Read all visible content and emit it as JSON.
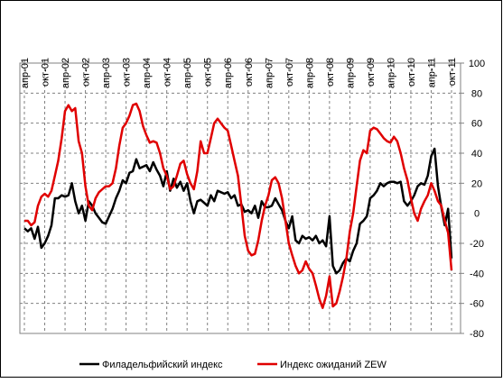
{
  "chart_data": {
    "type": "line",
    "categories": [
      "апр-01",
      null,
      null,
      null,
      null,
      null,
      "окт-01",
      null,
      null,
      null,
      null,
      null,
      "апр-02",
      null,
      null,
      null,
      null,
      null,
      "окт-02",
      null,
      null,
      null,
      null,
      null,
      "апр-03",
      null,
      null,
      null,
      null,
      null,
      "окт-03",
      null,
      null,
      null,
      null,
      null,
      "апр-04",
      null,
      null,
      null,
      null,
      null,
      "окт-04",
      null,
      null,
      null,
      null,
      null,
      "апр-05",
      null,
      null,
      null,
      null,
      null,
      "окт-05",
      null,
      null,
      null,
      null,
      null,
      "апр-06",
      null,
      null,
      null,
      null,
      null,
      "окт-06",
      null,
      null,
      null,
      null,
      null,
      "апр-07",
      null,
      null,
      null,
      null,
      null,
      "окт-07",
      null,
      null,
      null,
      null,
      null,
      "апр-08",
      null,
      null,
      null,
      null,
      null,
      "окт-08",
      null,
      null,
      null,
      null,
      null,
      "апр-09",
      null,
      null,
      null,
      null,
      null,
      "окт-09",
      null,
      null,
      null,
      null,
      null,
      "апр-10",
      null,
      null,
      null,
      null,
      null,
      "окт-10",
      null,
      null,
      null,
      null,
      null,
      "апр-11",
      null,
      null,
      null,
      null,
      null,
      "окт-11"
    ],
    "series": [
      {
        "name": "Филадельфийский индекс",
        "color": "#000000",
        "values": [
          -10,
          -12,
          -10,
          -17,
          -9,
          -23,
          -20,
          -15,
          -8,
          10,
          10,
          12,
          11,
          12,
          20,
          8,
          0,
          5,
          -5,
          8,
          5,
          0,
          -3,
          -6,
          -7,
          -2,
          3,
          10,
          15,
          22,
          20,
          27,
          28,
          36,
          30,
          31,
          32,
          28,
          34,
          29,
          25,
          18,
          28,
          15,
          23,
          17,
          21,
          15,
          20,
          8,
          0,
          8,
          9,
          7,
          5,
          12,
          8,
          15,
          14,
          13,
          14,
          10,
          12,
          5,
          6,
          1,
          2,
          0,
          5,
          -3,
          8,
          4,
          4,
          5,
          10,
          6,
          2,
          -5,
          -10,
          -2,
          -18,
          -20,
          -15,
          -17,
          -16,
          -18,
          -15,
          -20,
          -18,
          -22,
          -2,
          -35,
          -40,
          -38,
          -33,
          -30,
          -32,
          -25,
          -20,
          -7,
          -5,
          -2,
          10,
          12,
          15,
          20,
          18,
          20,
          21,
          21,
          20,
          21,
          8,
          5,
          8,
          12,
          18,
          20,
          19,
          25,
          38,
          43,
          18,
          4,
          -8,
          3,
          -30
        ]
      },
      {
        "name": "Индекс ожиданий ZEW",
        "color": "#e00000",
        "values": [
          -5,
          -5,
          -8,
          -6,
          5,
          11,
          13,
          11,
          15,
          25,
          35,
          50,
          68,
          72,
          68,
          70,
          48,
          40,
          18,
          5,
          2,
          10,
          14,
          16,
          18,
          18,
          20,
          30,
          45,
          57,
          60,
          65,
          72,
          73,
          68,
          58,
          52,
          47,
          48,
          47,
          40,
          30,
          25,
          16,
          18,
          25,
          33,
          35,
          26,
          20,
          16,
          28,
          48,
          40,
          40,
          50,
          60,
          63,
          60,
          57,
          55,
          45,
          35,
          25,
          5,
          -15,
          -25,
          -28,
          -27,
          -18,
          -5,
          5,
          12,
          22,
          24,
          20,
          10,
          -5,
          -20,
          -28,
          -35,
          -40,
          -38,
          -32,
          -37,
          -40,
          -48,
          -57,
          -63,
          -55,
          -42,
          -62,
          -60,
          -52,
          -42,
          -30,
          -12,
          0,
          18,
          35,
          42,
          40,
          55,
          57,
          56,
          53,
          50,
          48,
          47,
          51,
          48,
          40,
          30,
          22,
          10,
          0,
          -5,
          3,
          8,
          12,
          20,
          15,
          8,
          5,
          -5,
          -13,
          -38
        ]
      }
    ],
    "ylim": [
      -80,
      100
    ],
    "yticks": [
      -80,
      -60,
      -40,
      -20,
      0,
      20,
      40,
      60,
      80,
      100
    ],
    "grid": true,
    "legend": "bottom"
  }
}
